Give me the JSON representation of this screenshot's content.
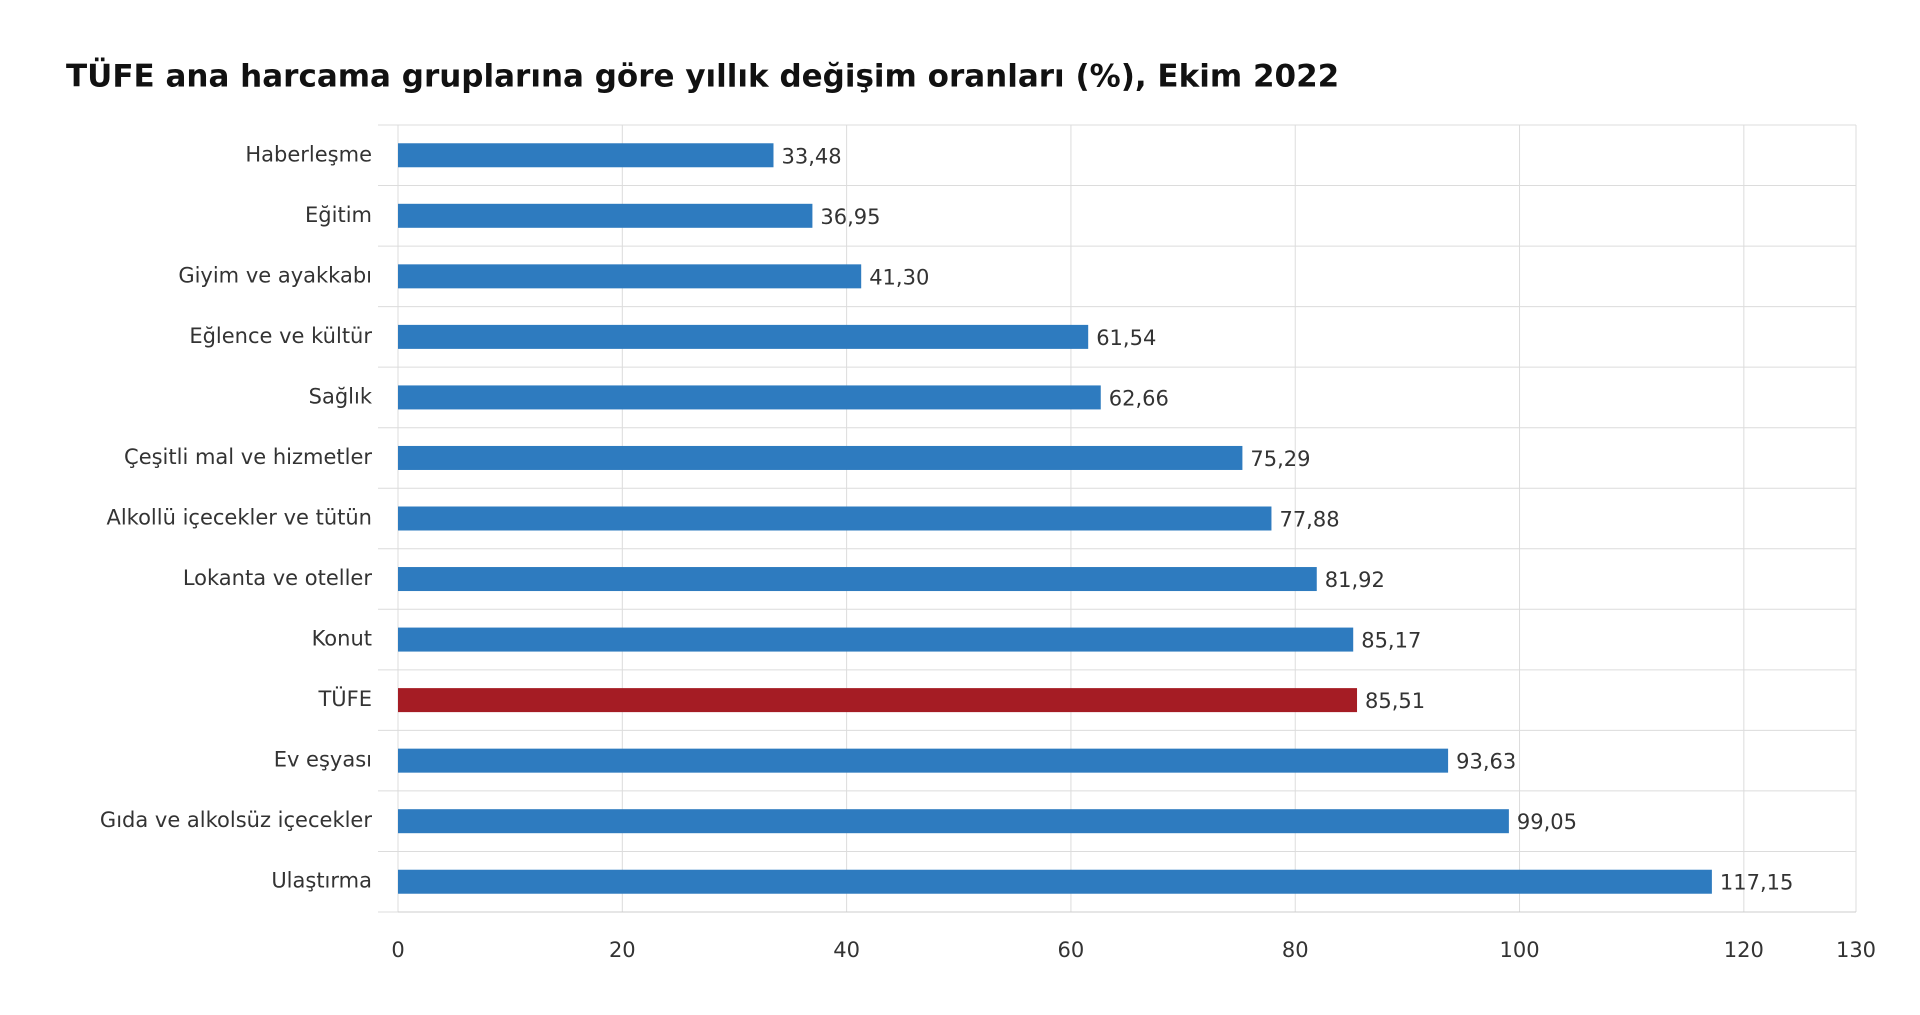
{
  "chart_data": {
    "type": "hbar",
    "title": "TÜFE ana harcama gruplarına göre yıllık değişim oranları (%), Ekim 2022",
    "categories": [
      "Haberleşme",
      "Eğitim",
      "Giyim ve ayakkabı",
      "Eğlence ve kültür",
      "Sağlık",
      "Çeşitli mal ve hizmetler",
      "Alkollü içecekler ve tütün",
      "Lokanta ve oteller",
      "Konut",
      "TÜFE",
      "Ev eşyası",
      "Gıda ve alkolsüz içecekler",
      "Ulaştırma"
    ],
    "values": [
      33.48,
      36.95,
      41.3,
      61.54,
      62.66,
      75.29,
      77.88,
      81.92,
      85.17,
      85.51,
      93.63,
      99.05,
      117.15
    ],
    "value_labels": [
      "33,48",
      "36,95",
      "41,30",
      "61,54",
      "62,66",
      "75,29",
      "77,88",
      "81,92",
      "85,17",
      "85,51",
      "93,63",
      "99,05",
      "117,15"
    ],
    "colors": [
      "#2e7bbf",
      "#2e7bbf",
      "#2e7bbf",
      "#2e7bbf",
      "#2e7bbf",
      "#2e7bbf",
      "#2e7bbf",
      "#2e7bbf",
      "#2e7bbf",
      "#a51c24",
      "#2e7bbf",
      "#2e7bbf",
      "#2e7bbf"
    ],
    "xlim": [
      0,
      130
    ],
    "xticks": [
      0,
      20,
      40,
      60,
      80,
      100,
      120,
      130
    ],
    "grid": true
  }
}
